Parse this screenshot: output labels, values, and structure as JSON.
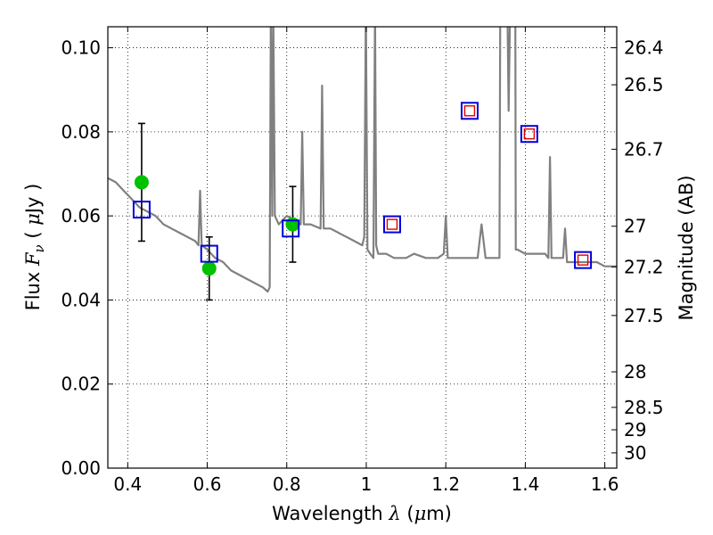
{
  "chart_data": {
    "type": "scatter",
    "xlabel_prefix": "Wavelength ",
    "xlabel_math": "λ",
    "xlabel_unit_open": " (",
    "xlabel_unit_math": "μ",
    "xlabel_unit_close": "m)",
    "ylabel_prefix": "Flux ",
    "ylabel_math": "F",
    "ylabel_sub": "ν",
    "ylabel_unit_open": " ( ",
    "ylabel_unit_math": "μ",
    "ylabel_unit_close": "Jy )",
    "right_ylabel": "Magnitude (AB)",
    "xlim": [
      0.35,
      1.63
    ],
    "ylim": [
      0.0,
      0.105
    ],
    "grid": true,
    "x_ticks": [
      {
        "value": 0.4,
        "label": "0.4"
      },
      {
        "value": 0.6,
        "label": "0.6"
      },
      {
        "value": 0.8,
        "label": "0.8"
      },
      {
        "value": 1.0,
        "label": "1"
      },
      {
        "value": 1.2,
        "label": "1.2"
      },
      {
        "value": 1.4,
        "label": "1.4"
      },
      {
        "value": 1.6,
        "label": "1.6"
      }
    ],
    "y_ticks": [
      {
        "value": 0.0,
        "label": "0.00"
      },
      {
        "value": 0.02,
        "label": "0.02"
      },
      {
        "value": 0.04,
        "label": "0.04"
      },
      {
        "value": 0.06,
        "label": "0.06"
      },
      {
        "value": 0.08,
        "label": "0.08"
      },
      {
        "value": 0.1,
        "label": "0.10"
      }
    ],
    "magnitude_ticks": [
      {
        "value": 26.4,
        "label": "26.4"
      },
      {
        "value": 26.5,
        "label": "26.5"
      },
      {
        "value": 26.7,
        "label": "26.7"
      },
      {
        "value": 27.0,
        "label": "27"
      },
      {
        "value": 27.2,
        "label": "27.2"
      },
      {
        "value": 27.5,
        "label": "27.5"
      },
      {
        "value": 28.0,
        "label": "28"
      },
      {
        "value": 28.5,
        "label": "28.5"
      },
      {
        "value": 29.0,
        "label": "29"
      },
      {
        "value": 30.0,
        "label": "30"
      }
    ],
    "series": [
      {
        "name": "model_spectrum",
        "kind": "line",
        "color": "#808080",
        "x": [
          0.35,
          0.37,
          0.39,
          0.41,
          0.43,
          0.45,
          0.47,
          0.49,
          0.51,
          0.53,
          0.55,
          0.57,
          0.578,
          0.582,
          0.586,
          0.6,
          0.62,
          0.64,
          0.66,
          0.68,
          0.7,
          0.72,
          0.74,
          0.752,
          0.757,
          0.76,
          0.7635,
          0.766,
          0.77,
          0.78,
          0.8,
          0.82,
          0.835,
          0.839,
          0.843,
          0.86,
          0.885,
          0.889,
          0.893,
          0.91,
          0.93,
          0.95,
          0.97,
          0.99,
          0.995,
          0.999,
          1.003,
          1.01,
          1.018,
          1.022,
          1.025,
          1.03,
          1.05,
          1.07,
          1.09,
          1.1,
          1.12,
          1.15,
          1.18,
          1.195,
          1.2,
          1.205,
          1.22,
          1.25,
          1.28,
          1.29,
          1.3,
          1.32,
          1.335,
          1.337,
          1.345,
          1.355,
          1.358,
          1.362,
          1.375,
          1.376,
          1.38,
          1.4,
          1.42,
          1.45,
          1.458,
          1.462,
          1.466,
          1.48,
          1.495,
          1.5,
          1.505,
          1.52,
          1.55,
          1.58,
          1.6,
          1.63
        ],
        "y": [
          0.069,
          0.068,
          0.066,
          0.064,
          0.062,
          0.061,
          0.06,
          0.058,
          0.057,
          0.056,
          0.055,
          0.054,
          0.053,
          0.066,
          0.053,
          0.052,
          0.05,
          0.049,
          0.047,
          0.046,
          0.045,
          0.044,
          0.043,
          0.042,
          0.043,
          0.11,
          0.06,
          0.11,
          0.06,
          0.058,
          0.06,
          0.059,
          0.058,
          0.08,
          0.058,
          0.058,
          0.057,
          0.091,
          0.057,
          0.057,
          0.056,
          0.055,
          0.054,
          0.053,
          0.055,
          0.11,
          0.052,
          0.051,
          0.05,
          0.11,
          0.053,
          0.051,
          0.051,
          0.05,
          0.05,
          0.05,
          0.051,
          0.05,
          0.05,
          0.051,
          0.06,
          0.05,
          0.05,
          0.05,
          0.05,
          0.058,
          0.05,
          0.05,
          0.05,
          0.11,
          0.11,
          0.11,
          0.085,
          0.11,
          0.11,
          0.052,
          0.052,
          0.051,
          0.051,
          0.051,
          0.05,
          0.074,
          0.05,
          0.05,
          0.05,
          0.057,
          0.049,
          0.049,
          0.049,
          0.049,
          0.048,
          0.048
        ]
      },
      {
        "name": "observed_flux",
        "kind": "points_with_errorbars",
        "color": "#00c000",
        "x": [
          0.435,
          0.605,
          0.815
        ],
        "y": [
          0.068,
          0.0475,
          0.058
        ],
        "yerr_low": [
          0.054,
          0.04,
          0.049
        ],
        "yerr_high": [
          0.082,
          0.055,
          0.067
        ]
      },
      {
        "name": "model_photometry",
        "kind": "open_squares",
        "color": "#0000dd",
        "x": [
          0.435,
          0.605,
          0.81,
          1.065,
          1.26,
          1.41,
          1.545
        ],
        "y": [
          0.0615,
          0.051,
          0.057,
          0.058,
          0.085,
          0.0795,
          0.0495
        ]
      },
      {
        "name": "upper_limits",
        "kind": "small_squares",
        "color": "#e00000",
        "x": [
          1.065,
          1.26,
          1.41,
          1.545
        ],
        "y": [
          0.058,
          0.085,
          0.0795,
          0.0495
        ]
      }
    ]
  }
}
